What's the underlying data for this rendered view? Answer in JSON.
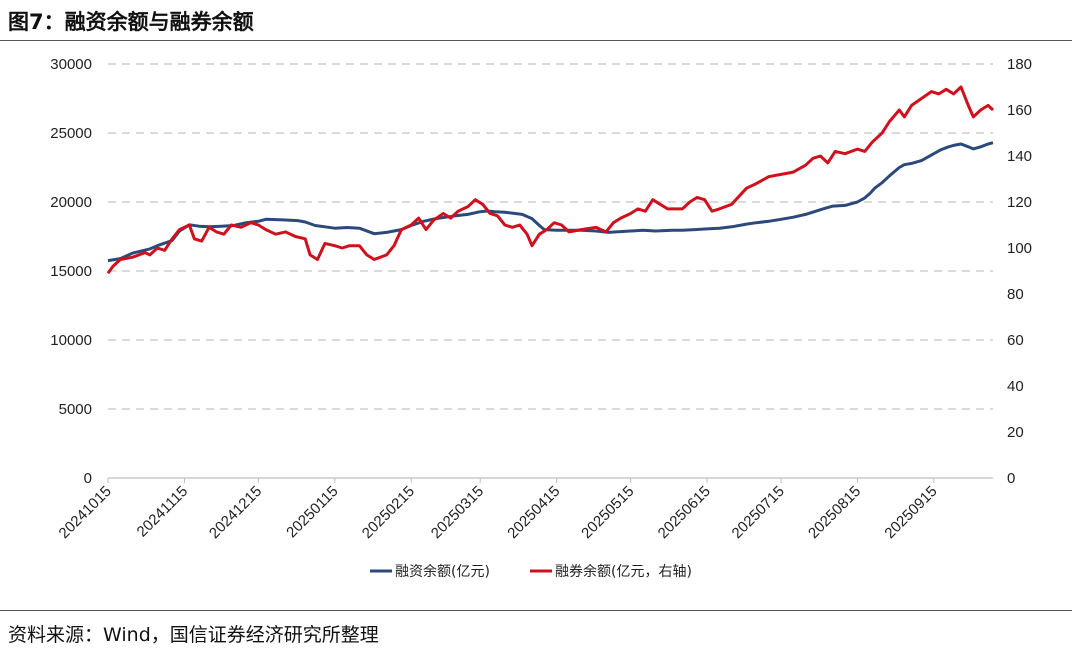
{
  "figure": {
    "title": "图7：融资余额与融券余额",
    "source": "资料来源：Wind，国信证券经济研究所整理"
  },
  "chart_data": {
    "type": "line",
    "title": "",
    "left_axis": {
      "ylim": [
        0,
        30000
      ],
      "ticks": [
        "0",
        "5000",
        "10000",
        "15000",
        "20000",
        "25000",
        "30000"
      ]
    },
    "right_axis": {
      "ylim": [
        0,
        180
      ],
      "ticks": [
        "0",
        "20",
        "40",
        "60",
        "80",
        "100",
        "120",
        "140",
        "160",
        "180"
      ]
    },
    "x_tick_labels": [
      "20241015",
      "20241115",
      "20241215",
      "20250115",
      "20250215",
      "20250315",
      "20250415",
      "20250515",
      "20250615",
      "20250715",
      "20250815",
      "20250915"
    ],
    "x_range": [
      "20241015",
      "20251009"
    ],
    "grid": "horizontal dashed",
    "legend_position": "bottom-center",
    "series": [
      {
        "name": "融资余额(亿元)",
        "axis": "left",
        "color": "#2b4a7a",
        "points": [
          [
            "20241015",
            15750
          ],
          [
            "20241020",
            15900
          ],
          [
            "20241025",
            16300
          ],
          [
            "20241101",
            16600
          ],
          [
            "20241105",
            16900
          ],
          [
            "20241110",
            17200
          ],
          [
            "20241113",
            17900
          ],
          [
            "20241117",
            18350
          ],
          [
            "20241121",
            18250
          ],
          [
            "20241125",
            18200
          ],
          [
            "20241130",
            18250
          ],
          [
            "20241205",
            18300
          ],
          [
            "20241210",
            18500
          ],
          [
            "20241215",
            18600
          ],
          [
            "20241218",
            18750
          ],
          [
            "20241225",
            18700
          ],
          [
            "20241231",
            18650
          ],
          [
            "20250103",
            18550
          ],
          [
            "20250107",
            18300
          ],
          [
            "20250111",
            18200
          ],
          [
            "20250115",
            18100
          ],
          [
            "20250120",
            18150
          ],
          [
            "20250125",
            18100
          ],
          [
            "20250131",
            17700
          ],
          [
            "20250205",
            17800
          ],
          [
            "20250211",
            18000
          ],
          [
            "20250215",
            18300
          ],
          [
            "20250220",
            18600
          ],
          [
            "20250225",
            18800
          ],
          [
            "20250301",
            18900
          ],
          [
            "20250305",
            19000
          ],
          [
            "20250310",
            19100
          ],
          [
            "20250315",
            19300
          ],
          [
            "20250318",
            19350
          ],
          [
            "20250321",
            19300
          ],
          [
            "20250325",
            19250
          ],
          [
            "20250401",
            19100
          ],
          [
            "20250405",
            18800
          ],
          [
            "20250408",
            18300
          ],
          [
            "20250410",
            18000
          ],
          [
            "20250415",
            17950
          ],
          [
            "20250420",
            17950
          ],
          [
            "20250425",
            17950
          ],
          [
            "20250501",
            17900
          ],
          [
            "20250506",
            17800
          ],
          [
            "20250510",
            17850
          ],
          [
            "20250515",
            17900
          ],
          [
            "20250520",
            17950
          ],
          [
            "20250525",
            17900
          ],
          [
            "20250601",
            17950
          ],
          [
            "20250605",
            17950
          ],
          [
            "20250610",
            18000
          ],
          [
            "20250615",
            18050
          ],
          [
            "20250620",
            18100
          ],
          [
            "20250625",
            18200
          ],
          [
            "20250701",
            18400
          ],
          [
            "20250705",
            18500
          ],
          [
            "20250710",
            18600
          ],
          [
            "20250715",
            18750
          ],
          [
            "20250720",
            18900
          ],
          [
            "20250725",
            19100
          ],
          [
            "20250801",
            19500
          ],
          [
            "20250805",
            19700
          ],
          [
            "20250810",
            19750
          ],
          [
            "20250815",
            20000
          ],
          [
            "20250818",
            20300
          ],
          [
            "20250820",
            20600
          ],
          [
            "20250822",
            21000
          ],
          [
            "20250825",
            21400
          ],
          [
            "20250828",
            21900
          ],
          [
            "20250901",
            22500
          ],
          [
            "20250903",
            22700
          ],
          [
            "20250906",
            22800
          ],
          [
            "20250910",
            23000
          ],
          [
            "20250915",
            23500
          ],
          [
            "20250918",
            23800
          ],
          [
            "20250921",
            24000
          ],
          [
            "20250923",
            24100
          ],
          [
            "20250926",
            24200
          ],
          [
            "20250929",
            24000
          ],
          [
            "20251001",
            23850
          ],
          [
            "20251004",
            24000
          ],
          [
            "20251007",
            24200
          ],
          [
            "20251009",
            24300
          ]
        ]
      },
      {
        "name": "融券余额(亿元，右轴)",
        "axis": "right",
        "color": "#d0101d",
        "points": [
          [
            "20241015",
            89
          ],
          [
            "20241017",
            92
          ],
          [
            "20241020",
            95
          ],
          [
            "20241025",
            96
          ],
          [
            "20241030",
            98
          ],
          [
            "20241101",
            97
          ],
          [
            "20241104",
            100
          ],
          [
            "20241107",
            99
          ],
          [
            "20241110",
            104
          ],
          [
            "20241113",
            108
          ],
          [
            "20241117",
            110
          ],
          [
            "20241119",
            104
          ],
          [
            "20241122",
            103
          ],
          [
            "20241125",
            109
          ],
          [
            "20241128",
            107
          ],
          [
            "20241201",
            106
          ],
          [
            "20241204",
            110
          ],
          [
            "20241208",
            109
          ],
          [
            "20241212",
            111
          ],
          [
            "20241215",
            110
          ],
          [
            "20241218",
            108
          ],
          [
            "20241222",
            106
          ],
          [
            "20241226",
            107
          ],
          [
            "20241230",
            105
          ],
          [
            "20250103",
            104
          ],
          [
            "20250105",
            97
          ],
          [
            "20250108",
            95
          ],
          [
            "20250111",
            102
          ],
          [
            "20250115",
            101
          ],
          [
            "20250118",
            100
          ],
          [
            "20250121",
            101
          ],
          [
            "20250125",
            101
          ],
          [
            "20250128",
            97
          ],
          [
            "20250131",
            95
          ],
          [
            "20250205",
            97
          ],
          [
            "20250208",
            101
          ],
          [
            "20250211",
            108
          ],
          [
            "20250215",
            110
          ],
          [
            "20250218",
            113
          ],
          [
            "20250221",
            108
          ],
          [
            "20250224",
            112
          ],
          [
            "20250228",
            115
          ],
          [
            "20250303",
            113
          ],
          [
            "20250306",
            116
          ],
          [
            "20250310",
            118
          ],
          [
            "20250313",
            121
          ],
          [
            "20250316",
            119
          ],
          [
            "20250319",
            115
          ],
          [
            "20250322",
            114
          ],
          [
            "20250325",
            110
          ],
          [
            "20250328",
            109
          ],
          [
            "20250331",
            110
          ],
          [
            "20250403",
            106
          ],
          [
            "20250405",
            101
          ],
          [
            "20250408",
            106
          ],
          [
            "20250411",
            108
          ],
          [
            "20250414",
            111
          ],
          [
            "20250417",
            110
          ],
          [
            "20250420",
            107
          ],
          [
            "20250425",
            108
          ],
          [
            "20250501",
            109
          ],
          [
            "20250505",
            107
          ],
          [
            "20250508",
            111
          ],
          [
            "20250511",
            113
          ],
          [
            "20250515",
            115
          ],
          [
            "20250518",
            117
          ],
          [
            "20250521",
            116
          ],
          [
            "20250524",
            121
          ],
          [
            "20250527",
            119
          ],
          [
            "20250530",
            117
          ],
          [
            "20250605",
            117
          ],
          [
            "20250608",
            120
          ],
          [
            "20250611",
            122
          ],
          [
            "20250614",
            121
          ],
          [
            "20250617",
            116
          ],
          [
            "20250620",
            117
          ],
          [
            "20250625",
            119
          ],
          [
            "20250701",
            126
          ],
          [
            "20250705",
            128
          ],
          [
            "20250710",
            131
          ],
          [
            "20250715",
            132
          ],
          [
            "20250720",
            133
          ],
          [
            "20250725",
            136
          ],
          [
            "20250728",
            139
          ],
          [
            "20250731",
            140
          ],
          [
            "20250803",
            137
          ],
          [
            "20250806",
            142
          ],
          [
            "20250810",
            141
          ],
          [
            "20250815",
            143
          ],
          [
            "20250818",
            142
          ],
          [
            "20250821",
            146
          ],
          [
            "20250825",
            150
          ],
          [
            "20250828",
            155
          ],
          [
            "20250901",
            160
          ],
          [
            "20250903",
            157
          ],
          [
            "20250906",
            162
          ],
          [
            "20250910",
            165
          ],
          [
            "20250914",
            168
          ],
          [
            "20250917",
            167
          ],
          [
            "20250920",
            169
          ],
          [
            "20250923",
            167
          ],
          [
            "20250926",
            170
          ],
          [
            "20250929",
            162
          ],
          [
            "20251001",
            157
          ],
          [
            "20251004",
            160
          ],
          [
            "20251007",
            162
          ],
          [
            "20251009",
            160
          ]
        ]
      }
    ]
  }
}
